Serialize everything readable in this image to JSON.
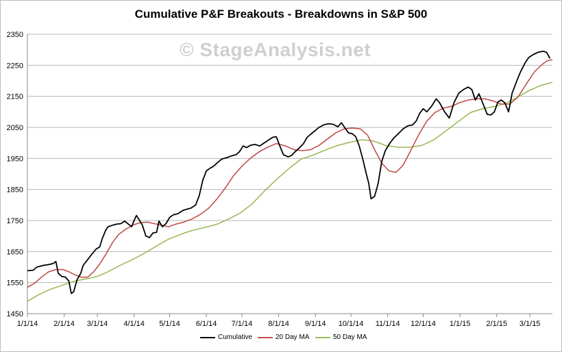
{
  "chart_data": {
    "type": "line",
    "title": "Cumulative P&F Breakouts - Breakdowns in S&P 500",
    "watermark": "© StageAnalysis.net",
    "xlabel": "",
    "ylabel": "",
    "ylim": [
      1450,
      2350
    ],
    "yticks": [
      1450,
      1550,
      1650,
      1750,
      1850,
      1950,
      2050,
      2150,
      2250,
      2350
    ],
    "xlim": [
      "2014-01-01",
      "2015-03-20"
    ],
    "xticks": [
      {
        "label": "1/1/14",
        "date": "2014-01-01"
      },
      {
        "label": "2/1/14",
        "date": "2014-02-01"
      },
      {
        "label": "3/1/14",
        "date": "2014-03-01"
      },
      {
        "label": "4/1/14",
        "date": "2014-04-01"
      },
      {
        "label": "5/1/14",
        "date": "2014-05-01"
      },
      {
        "label": "6/1/14",
        "date": "2014-06-01"
      },
      {
        "label": "7/1/14",
        "date": "2014-07-01"
      },
      {
        "label": "8/1/14",
        "date": "2014-08-01"
      },
      {
        "label": "9/1/14",
        "date": "2014-09-01"
      },
      {
        "label": "10/1/14",
        "date": "2014-10-01"
      },
      {
        "label": "11/1/14",
        "date": "2014-11-01"
      },
      {
        "label": "12/1/14",
        "date": "2014-12-01"
      },
      {
        "label": "1/1/15",
        "date": "2015-01-01"
      },
      {
        "label": "2/1/15",
        "date": "2015-02-01"
      },
      {
        "label": "3/1/15",
        "date": "2015-03-01"
      }
    ],
    "grid": "horizontal",
    "legend_position": "bottom",
    "series": [
      {
        "name": "Cumulative",
        "color": "#000000",
        "points": [
          [
            "2014-01-01",
            1588
          ],
          [
            "2014-01-06",
            1590
          ],
          [
            "2014-01-09",
            1600
          ],
          [
            "2014-01-14",
            1605
          ],
          [
            "2014-01-19",
            1608
          ],
          [
            "2014-01-23",
            1612
          ],
          [
            "2014-01-25",
            1618
          ],
          [
            "2014-01-27",
            1580
          ],
          [
            "2014-01-30",
            1570
          ],
          [
            "2014-02-02",
            1568
          ],
          [
            "2014-02-05",
            1555
          ],
          [
            "2014-02-07",
            1515
          ],
          [
            "2014-02-09",
            1520
          ],
          [
            "2014-02-12",
            1560
          ],
          [
            "2014-02-15",
            1580
          ],
          [
            "2014-02-17",
            1605
          ],
          [
            "2014-02-21",
            1625
          ],
          [
            "2014-02-24",
            1640
          ],
          [
            "2014-02-28",
            1658
          ],
          [
            "2014-03-03",
            1665
          ],
          [
            "2014-03-05",
            1690
          ],
          [
            "2014-03-08",
            1718
          ],
          [
            "2014-03-10",
            1730
          ],
          [
            "2014-03-14",
            1735
          ],
          [
            "2014-03-17",
            1738
          ],
          [
            "2014-03-21",
            1740
          ],
          [
            "2014-03-24",
            1748
          ],
          [
            "2014-03-26",
            1742
          ],
          [
            "2014-03-30",
            1730
          ],
          [
            "2014-04-01",
            1750
          ],
          [
            "2014-04-03",
            1766
          ],
          [
            "2014-04-06",
            1748
          ],
          [
            "2014-04-08",
            1735
          ],
          [
            "2014-04-11",
            1700
          ],
          [
            "2014-04-14",
            1695
          ],
          [
            "2014-04-17",
            1710
          ],
          [
            "2014-04-20",
            1712
          ],
          [
            "2014-04-22",
            1748
          ],
          [
            "2014-04-25",
            1730
          ],
          [
            "2014-04-28",
            1740
          ],
          [
            "2014-05-01",
            1760
          ],
          [
            "2014-05-04",
            1768
          ],
          [
            "2014-05-08",
            1772
          ],
          [
            "2014-05-12",
            1782
          ],
          [
            "2014-05-15",
            1786
          ],
          [
            "2014-05-19",
            1790
          ],
          [
            "2014-05-23",
            1800
          ],
          [
            "2014-05-26",
            1830
          ],
          [
            "2014-05-29",
            1880
          ],
          [
            "2014-06-01",
            1910
          ],
          [
            "2014-06-04",
            1918
          ],
          [
            "2014-06-07",
            1925
          ],
          [
            "2014-06-10",
            1935
          ],
          [
            "2014-06-14",
            1948
          ],
          [
            "2014-06-18",
            1952
          ],
          [
            "2014-06-22",
            1958
          ],
          [
            "2014-06-26",
            1962
          ],
          [
            "2014-06-29",
            1972
          ],
          [
            "2014-07-02",
            1990
          ],
          [
            "2014-07-05",
            1985
          ],
          [
            "2014-07-08",
            1992
          ],
          [
            "2014-07-12",
            1995
          ],
          [
            "2014-07-16",
            1990
          ],
          [
            "2014-07-19",
            1998
          ],
          [
            "2014-07-23",
            2008
          ],
          [
            "2014-07-27",
            2018
          ],
          [
            "2014-07-30",
            2020
          ],
          [
            "2014-08-02",
            1990
          ],
          [
            "2014-08-05",
            1962
          ],
          [
            "2014-08-09",
            1955
          ],
          [
            "2014-08-12",
            1960
          ],
          [
            "2014-08-15",
            1972
          ],
          [
            "2014-08-18",
            1982
          ],
          [
            "2014-08-22",
            1998
          ],
          [
            "2014-08-25",
            2018
          ],
          [
            "2014-08-28",
            2028
          ],
          [
            "2014-09-01",
            2040
          ],
          [
            "2014-09-04",
            2050
          ],
          [
            "2014-09-08",
            2058
          ],
          [
            "2014-09-12",
            2062
          ],
          [
            "2014-09-16",
            2060
          ],
          [
            "2014-09-20",
            2052
          ],
          [
            "2014-09-23",
            2065
          ],
          [
            "2014-09-26",
            2048
          ],
          [
            "2014-09-29",
            2032
          ],
          [
            "2014-10-02",
            2030
          ],
          [
            "2014-10-05",
            2020
          ],
          [
            "2014-10-08",
            1990
          ],
          [
            "2014-10-11",
            1948
          ],
          [
            "2014-10-14",
            1900
          ],
          [
            "2014-10-16",
            1870
          ],
          [
            "2014-10-18",
            1820
          ],
          [
            "2014-10-21",
            1828
          ],
          [
            "2014-10-24",
            1870
          ],
          [
            "2014-10-27",
            1940
          ],
          [
            "2014-10-30",
            1975
          ],
          [
            "2014-11-03",
            2000
          ],
          [
            "2014-11-06",
            2015
          ],
          [
            "2014-11-10",
            2030
          ],
          [
            "2014-11-14",
            2045
          ],
          [
            "2014-11-18",
            2055
          ],
          [
            "2014-11-22",
            2058
          ],
          [
            "2014-11-25",
            2070
          ],
          [
            "2014-11-28",
            2095
          ],
          [
            "2014-12-01",
            2110
          ],
          [
            "2014-12-04",
            2100
          ],
          [
            "2014-12-08",
            2118
          ],
          [
            "2014-12-12",
            2142
          ],
          [
            "2014-12-15",
            2128
          ],
          [
            "2014-12-19",
            2100
          ],
          [
            "2014-12-23",
            2080
          ],
          [
            "2014-12-27",
            2130
          ],
          [
            "2014-12-31",
            2160
          ],
          [
            "2015-01-04",
            2172
          ],
          [
            "2015-01-08",
            2180
          ],
          [
            "2015-01-11",
            2172
          ],
          [
            "2015-01-14",
            2138
          ],
          [
            "2015-01-17",
            2158
          ],
          [
            "2015-01-20",
            2130
          ],
          [
            "2015-01-24",
            2092
          ],
          [
            "2015-01-27",
            2090
          ],
          [
            "2015-01-30",
            2100
          ],
          [
            "2015-02-02",
            2132
          ],
          [
            "2015-02-05",
            2138
          ],
          [
            "2015-02-08",
            2128
          ],
          [
            "2015-02-11",
            2100
          ],
          [
            "2015-02-14",
            2160
          ],
          [
            "2015-02-18",
            2200
          ],
          [
            "2015-02-21",
            2228
          ],
          [
            "2015-02-25",
            2258
          ],
          [
            "2015-02-28",
            2275
          ],
          [
            "2015-03-04",
            2285
          ],
          [
            "2015-03-08",
            2292
          ],
          [
            "2015-03-12",
            2295
          ],
          [
            "2015-03-15",
            2292
          ],
          [
            "2015-03-18",
            2272
          ]
        ]
      },
      {
        "name": "20 Day MA",
        "color": "#c0504d",
        "points": [
          [
            "2014-01-01",
            1535
          ],
          [
            "2014-01-07",
            1548
          ],
          [
            "2014-01-13",
            1568
          ],
          [
            "2014-01-19",
            1585
          ],
          [
            "2014-01-25",
            1592
          ],
          [
            "2014-01-31",
            1592
          ],
          [
            "2014-02-05",
            1585
          ],
          [
            "2014-02-10",
            1575
          ],
          [
            "2014-02-16",
            1567
          ],
          [
            "2014-02-21",
            1568
          ],
          [
            "2014-02-26",
            1585
          ],
          [
            "2014-03-03",
            1610
          ],
          [
            "2014-03-08",
            1640
          ],
          [
            "2014-03-14",
            1680
          ],
          [
            "2014-03-19",
            1705
          ],
          [
            "2014-03-25",
            1722
          ],
          [
            "2014-03-31",
            1735
          ],
          [
            "2014-04-05",
            1742
          ],
          [
            "2014-04-12",
            1745
          ],
          [
            "2014-04-18",
            1740
          ],
          [
            "2014-04-24",
            1735
          ],
          [
            "2014-04-30",
            1730
          ],
          [
            "2014-05-06",
            1738
          ],
          [
            "2014-05-13",
            1745
          ],
          [
            "2014-05-20",
            1755
          ],
          [
            "2014-05-27",
            1770
          ],
          [
            "2014-06-03",
            1790
          ],
          [
            "2014-06-10",
            1820
          ],
          [
            "2014-06-17",
            1855
          ],
          [
            "2014-06-24",
            1895
          ],
          [
            "2014-07-01",
            1925
          ],
          [
            "2014-07-08",
            1950
          ],
          [
            "2014-07-15",
            1970
          ],
          [
            "2014-07-22",
            1985
          ],
          [
            "2014-07-30",
            1998
          ],
          [
            "2014-08-07",
            1990
          ],
          [
            "2014-08-14",
            1978
          ],
          [
            "2014-08-21",
            1975
          ],
          [
            "2014-08-28",
            1978
          ],
          [
            "2014-09-04",
            1992
          ],
          [
            "2014-09-11",
            2012
          ],
          [
            "2014-09-18",
            2032
          ],
          [
            "2014-09-25",
            2045
          ],
          [
            "2014-10-02",
            2048
          ],
          [
            "2014-10-09",
            2045
          ],
          [
            "2014-10-15",
            2025
          ],
          [
            "2014-10-21",
            1978
          ],
          [
            "2014-10-27",
            1935
          ],
          [
            "2014-11-02",
            1910
          ],
          [
            "2014-11-08",
            1905
          ],
          [
            "2014-11-14",
            1928
          ],
          [
            "2014-11-20",
            1972
          ],
          [
            "2014-11-27",
            2025
          ],
          [
            "2014-12-04",
            2070
          ],
          [
            "2014-12-11",
            2098
          ],
          [
            "2014-12-18",
            2112
          ],
          [
            "2014-12-25",
            2118
          ],
          [
            "2015-01-01",
            2130
          ],
          [
            "2015-01-08",
            2138
          ],
          [
            "2015-01-15",
            2142
          ],
          [
            "2015-01-22",
            2142
          ],
          [
            "2015-01-29",
            2135
          ],
          [
            "2015-02-05",
            2125
          ],
          [
            "2015-02-12",
            2125
          ],
          [
            "2015-02-19",
            2148
          ],
          [
            "2015-02-26",
            2190
          ],
          [
            "2015-03-05",
            2230
          ],
          [
            "2015-03-12",
            2255
          ],
          [
            "2015-03-16",
            2265
          ],
          [
            "2015-03-20",
            2268
          ]
        ]
      },
      {
        "name": "50 Day MA",
        "color": "#9bbb59",
        "points": [
          [
            "2014-01-01",
            1490
          ],
          [
            "2014-01-10",
            1510
          ],
          [
            "2014-01-20",
            1528
          ],
          [
            "2014-01-31",
            1542
          ],
          [
            "2014-02-10",
            1555
          ],
          [
            "2014-02-20",
            1562
          ],
          [
            "2014-03-01",
            1570
          ],
          [
            "2014-03-10",
            1585
          ],
          [
            "2014-03-20",
            1605
          ],
          [
            "2014-03-31",
            1625
          ],
          [
            "2014-04-10",
            1645
          ],
          [
            "2014-04-20",
            1668
          ],
          [
            "2014-04-30",
            1690
          ],
          [
            "2014-05-10",
            1705
          ],
          [
            "2014-05-20",
            1718
          ],
          [
            "2014-05-31",
            1728
          ],
          [
            "2014-06-10",
            1738
          ],
          [
            "2014-06-20",
            1755
          ],
          [
            "2014-06-30",
            1775
          ],
          [
            "2014-07-10",
            1805
          ],
          [
            "2014-07-20",
            1845
          ],
          [
            "2014-07-31",
            1885
          ],
          [
            "2014-08-10",
            1918
          ],
          [
            "2014-08-20",
            1948
          ],
          [
            "2014-08-31",
            1962
          ],
          [
            "2014-09-10",
            1978
          ],
          [
            "2014-09-20",
            1992
          ],
          [
            "2014-09-30",
            2002
          ],
          [
            "2014-10-10",
            2010
          ],
          [
            "2014-10-20",
            2006
          ],
          [
            "2014-10-30",
            1992
          ],
          [
            "2014-11-10",
            1986
          ],
          [
            "2014-11-20",
            1986
          ],
          [
            "2014-11-30",
            1992
          ],
          [
            "2014-12-10",
            2010
          ],
          [
            "2014-12-20",
            2038
          ],
          [
            "2014-12-31",
            2070
          ],
          [
            "2015-01-10",
            2098
          ],
          [
            "2015-01-20",
            2110
          ],
          [
            "2015-01-31",
            2118
          ],
          [
            "2015-02-10",
            2130
          ],
          [
            "2015-02-20",
            2150
          ],
          [
            "2015-02-28",
            2168
          ],
          [
            "2015-03-10",
            2185
          ],
          [
            "2015-03-20",
            2195
          ]
        ]
      }
    ]
  }
}
